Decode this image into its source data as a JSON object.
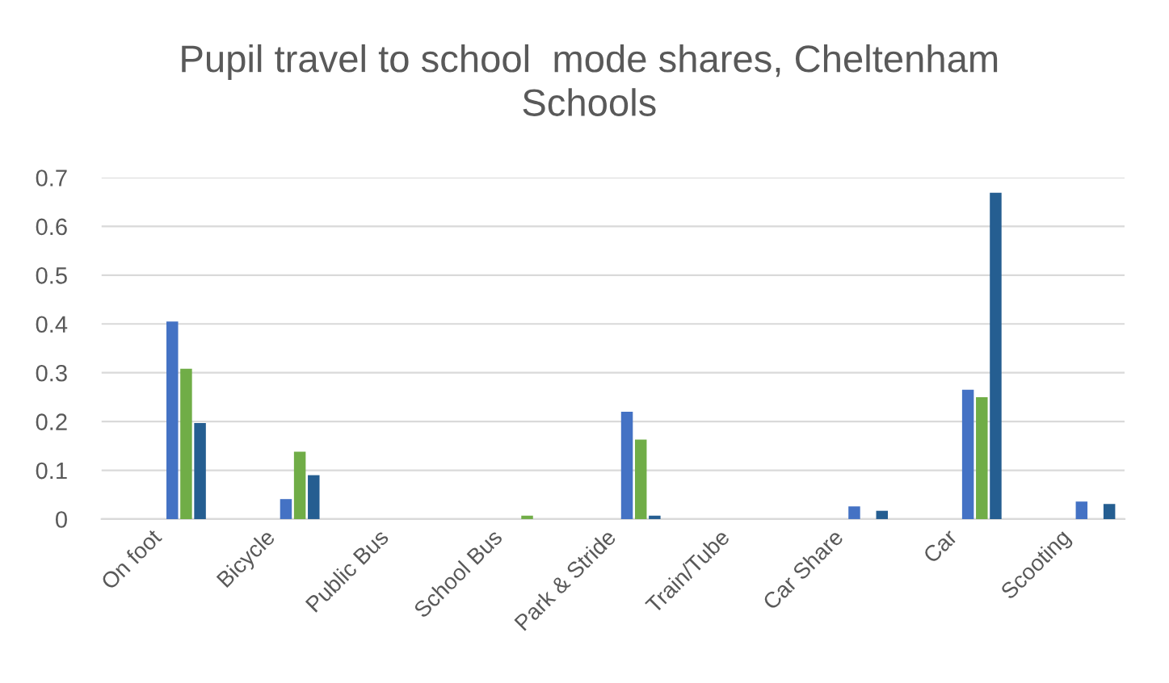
{
  "chart_data": {
    "type": "bar",
    "title": "Pupil travel to school  mode shares, Cheltenham\nSchools",
    "categories": [
      "On foot",
      "Bicycle",
      "Public Bus",
      "School Bus",
      "Park & Stride",
      "Train/Tube",
      "Car Share",
      "Car",
      "Scooting"
    ],
    "series": [
      {
        "color": "#4472c4",
        "values": [
          0.405,
          0.041,
          0,
          0,
          0.22,
          0,
          0.026,
          0.265,
          0.036
        ]
      },
      {
        "color": "#70ad47",
        "values": [
          0.308,
          0.138,
          0,
          0.007,
          0.163,
          0,
          0,
          0.25,
          0
        ]
      },
      {
        "color": "#255e91",
        "values": [
          0.197,
          0.09,
          0,
          0,
          0.007,
          0,
          0.017,
          0.669,
          0.031
        ]
      }
    ],
    "ylim": [
      0,
      0.7
    ],
    "yticks": [
      0,
      0.1,
      0.2,
      0.3,
      0.4,
      0.5,
      0.6,
      0.7
    ],
    "grid": "y"
  }
}
